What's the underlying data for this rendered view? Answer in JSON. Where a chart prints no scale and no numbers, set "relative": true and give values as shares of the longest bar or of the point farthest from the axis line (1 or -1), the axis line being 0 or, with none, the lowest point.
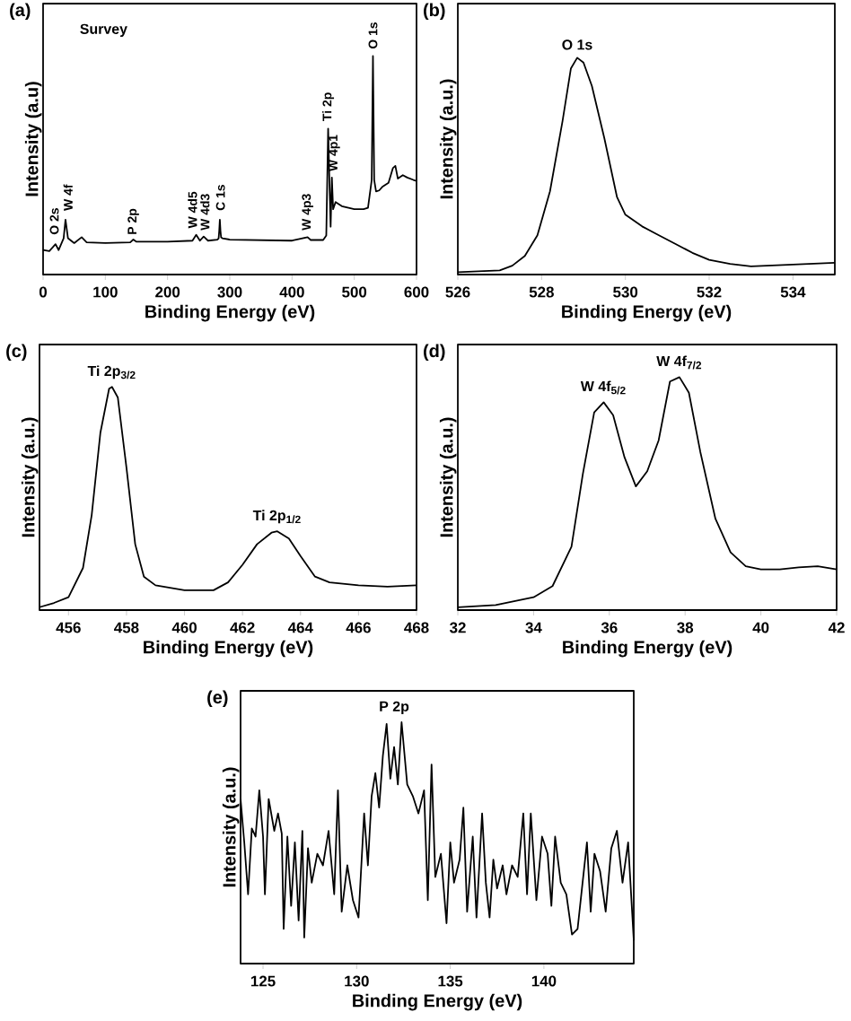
{
  "chart_data": [
    {
      "type": "line",
      "title": "(a)",
      "xlabel": "Binding Energy (eV)",
      "ylabel": "Intensity (a.u)",
      "relative": true,
      "tick_labels": "x",
      "color": "#000000",
      "xlim": [
        0,
        600
      ],
      "xticks": [
        0,
        100,
        200,
        300,
        400,
        500,
        600
      ],
      "x": [
        0,
        10,
        20,
        25,
        33,
        36,
        40,
        50,
        62,
        70,
        100,
        140,
        145,
        150,
        200,
        240,
        246,
        252,
        258,
        265,
        280,
        282,
        283,
        284,
        285,
        286,
        288,
        300,
        400,
        425,
        430,
        450,
        455,
        458,
        460,
        462,
        464,
        466,
        470,
        480,
        500,
        515,
        522,
        528,
        530,
        532,
        535,
        540,
        545,
        555,
        562,
        566,
        570,
        578,
        585,
        595,
        600
      ],
      "values": [
        0.112,
        0.107,
        0.139,
        0.112,
        0.166,
        0.251,
        0.166,
        0.144,
        0.171,
        0.147,
        0.144,
        0.147,
        0.16,
        0.15,
        0.15,
        0.155,
        0.182,
        0.155,
        0.174,
        0.155,
        0.16,
        0.165,
        0.2,
        0.251,
        0.2,
        0.17,
        0.166,
        0.16,
        0.155,
        0.171,
        0.158,
        0.158,
        0.179,
        0.668,
        0.433,
        0.219,
        0.444,
        0.299,
        0.332,
        0.313,
        0.299,
        0.299,
        0.305,
        0.433,
        1.0,
        0.433,
        0.38,
        0.385,
        0.401,
        0.42,
        0.487,
        0.497,
        0.439,
        0.455,
        0.444,
        0.433,
        0.428
      ],
      "annotations": [
        "Survey",
        {
          "text": "O 2s",
          "x": 18,
          "y": 0.17
        },
        {
          "text": "W 4f",
          "x": 40,
          "y": 0.28
        },
        {
          "text": "P 2p",
          "x": 145,
          "y": 0.17
        },
        {
          "text": "W 4d5",
          "x": 240,
          "y": 0.2
        },
        {
          "text": "W 4d3",
          "x": 260,
          "y": 0.19
        },
        {
          "text": "C 1s",
          "x": 285,
          "y": 0.28
        },
        {
          "text": "W 4p3",
          "x": 425,
          "y": 0.19
        },
        {
          "text": "Ti 2p",
          "x": 458,
          "y": 0.69
        },
        {
          "text": "W 4p1",
          "x": 468,
          "y": 0.46
        },
        {
          "text": "O 1s",
          "x": 530,
          "y": 1.02
        }
      ]
    },
    {
      "type": "line",
      "title": "(b)",
      "xlabel": "Binding Energy (eV)",
      "ylabel": "Intensity (a.u.)",
      "relative": true,
      "tick_labels": "x",
      "color": "#000000",
      "xlim": [
        526,
        535
      ],
      "xticks": [
        526,
        528,
        530,
        532,
        534
      ],
      "x": [
        526,
        527,
        527.3,
        527.6,
        527.9,
        528.2,
        528.5,
        528.7,
        528.85,
        529.0,
        529.2,
        529.5,
        529.8,
        530.0,
        530.4,
        530.8,
        531.2,
        531.6,
        532,
        532.5,
        533,
        534,
        535
      ],
      "values": [
        0.011,
        0.019,
        0.041,
        0.086,
        0.181,
        0.384,
        0.708,
        0.951,
        1.0,
        0.978,
        0.87,
        0.627,
        0.357,
        0.276,
        0.222,
        0.181,
        0.141,
        0.1,
        0.068,
        0.049,
        0.038,
        0.046,
        0.054
      ],
      "annotations": [
        {
          "text": "O 1s",
          "x": 528.85,
          "y": 1.0
        }
      ]
    },
    {
      "type": "line",
      "title": "(c)",
      "xlabel": "Binding Energy (eV)",
      "ylabel": "Intensity (a.u.)",
      "relative": true,
      "tick_labels": "x",
      "color": "#000000",
      "xlim": [
        455,
        468
      ],
      "xticks": [
        456,
        458,
        460,
        462,
        464,
        466,
        468
      ],
      "x": [
        455,
        455.5,
        456,
        456.5,
        456.8,
        457.1,
        457.4,
        457.5,
        457.7,
        458,
        458.3,
        458.6,
        459,
        460,
        461,
        461.5,
        462,
        462.5,
        463,
        463.2,
        463.6,
        464,
        464.5,
        465,
        466,
        467,
        468
      ],
      "values": [
        0.013,
        0.032,
        0.058,
        0.189,
        0.426,
        0.795,
        0.992,
        1.0,
        0.953,
        0.637,
        0.295,
        0.15,
        0.111,
        0.089,
        0.089,
        0.124,
        0.203,
        0.295,
        0.347,
        0.353,
        0.321,
        0.242,
        0.15,
        0.124,
        0.111,
        0.105,
        0.111
      ],
      "annotations": [
        {
          "text": "Ti 2p$_{3/2}$",
          "x": 457.5,
          "y": 1.0
        },
        {
          "text": "Ti 2p$_{1/2}$",
          "x": 463.2,
          "y": 0.353
        }
      ]
    },
    {
      "type": "line",
      "title": "(d)",
      "xlabel": "Binding Energy (eV)",
      "ylabel": "Intensity (a.u.)",
      "relative": true,
      "tick_labels": "x",
      "color": "#000000",
      "xlim": [
        32,
        42
      ],
      "xticks": [
        32,
        34,
        36,
        38,
        40,
        42
      ],
      "x": [
        32,
        33,
        34,
        34.5,
        35,
        35.3,
        35.6,
        35.85,
        36.1,
        36.4,
        36.7,
        37,
        37.3,
        37.6,
        37.85,
        38.1,
        38.4,
        38.8,
        39.2,
        39.6,
        40,
        40.5,
        41,
        41.5,
        42
      ],
      "values": [
        0.012,
        0.022,
        0.055,
        0.103,
        0.272,
        0.584,
        0.849,
        0.892,
        0.837,
        0.656,
        0.531,
        0.596,
        0.728,
        0.981,
        1.0,
        0.933,
        0.68,
        0.392,
        0.248,
        0.188,
        0.175,
        0.175,
        0.183,
        0.188,
        0.175
      ],
      "annotations": [
        {
          "text": "W 4f$_{5/2}$",
          "x": 35.85,
          "y": 0.892
        },
        {
          "text": "W 4f$_{7/2}$",
          "x": 37.85,
          "y": 1.0
        }
      ]
    },
    {
      "type": "line",
      "title": "(e)",
      "xlabel": "Binding Energy (eV)",
      "ylabel": "Intensity (a.u.)",
      "relative": true,
      "tick_labels": "x",
      "color": "#000000",
      "xlim": [
        123.8,
        144.8
      ],
      "xticks": [
        125,
        130,
        135,
        140
      ],
      "x": [
        123.8,
        124.0,
        124.2,
        124.4,
        124.6,
        124.8,
        125.0,
        125.1,
        125.3,
        125.6,
        125.8,
        126.0,
        126.1,
        126.3,
        126.5,
        126.7,
        126.9,
        127.1,
        127.2,
        127.4,
        127.6,
        127.9,
        128.2,
        128.5,
        128.8,
        129.0,
        129.2,
        129.5,
        129.8,
        130.1,
        130.4,
        130.6,
        130.8,
        131.0,
        131.2,
        131.4,
        131.6,
        131.8,
        132.0,
        132.2,
        132.4,
        132.7,
        133.0,
        133.3,
        133.6,
        133.8,
        134.0,
        134.2,
        134.5,
        134.8,
        135.0,
        135.2,
        135.5,
        135.7,
        135.9,
        136.2,
        136.4,
        136.7,
        136.9,
        137.1,
        137.3,
        137.5,
        137.8,
        138.0,
        138.3,
        138.6,
        138.9,
        139.1,
        139.3,
        139.6,
        139.9,
        140.2,
        140.4,
        140.6,
        140.9,
        141.2,
        141.5,
        141.8,
        142.1,
        142.3,
        142.5,
        142.7,
        143.0,
        143.3,
        143.6,
        143.9,
        144.2,
        144.5,
        144.8
      ],
      "values": [
        0.682,
        0.5,
        0.287,
        0.56,
        0.526,
        0.718,
        0.526,
        0.287,
        0.682,
        0.55,
        0.622,
        0.538,
        0.144,
        0.526,
        0.239,
        0.502,
        0.179,
        0.55,
        0.108,
        0.478,
        0.335,
        0.455,
        0.407,
        0.55,
        0.287,
        0.718,
        0.215,
        0.407,
        0.263,
        0.191,
        0.622,
        0.407,
        0.694,
        0.789,
        0.646,
        0.861,
        0.993,
        0.766,
        0.897,
        0.742,
        1.0,
        0.742,
        0.694,
        0.622,
        0.718,
        0.263,
        0.825,
        0.359,
        0.455,
        0.167,
        0.502,
        0.335,
        0.431,
        0.646,
        0.215,
        0.526,
        0.191,
        0.622,
        0.335,
        0.191,
        0.431,
        0.311,
        0.407,
        0.287,
        0.407,
        0.359,
        0.622,
        0.287,
        0.622,
        0.263,
        0.526,
        0.455,
        0.239,
        0.526,
        0.335,
        0.287,
        0.12,
        0.144,
        0.359,
        0.502,
        0.215,
        0.455,
        0.383,
        0.215,
        0.478,
        0.55,
        0.335,
        0.502,
        0.096
      ],
      "annotations": [
        {
          "text": "P 2p",
          "x": 132.0,
          "y": 1.0
        }
      ]
    }
  ]
}
